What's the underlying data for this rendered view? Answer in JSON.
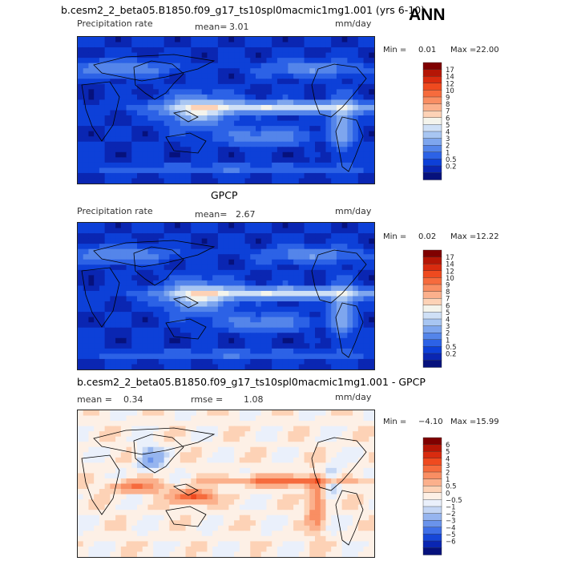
{
  "season": "ANN",
  "panels": [
    {
      "title": "b.cesm2_2_beta05.B1850.f09_g17_ts10spl0macmic1mg1.001 (yrs 6-10)",
      "left_label": "Precipitation rate",
      "stat1_label": "mean=",
      "stat1_value": "3.01",
      "stat2_label": "",
      "stat2_value": "",
      "units": "mm/day",
      "min_label": "Min =",
      "min_value": "0.01",
      "max_label": "Max =",
      "max_value": "22.00",
      "field": "abs",
      "colorbar": {
        "labels": [
          "17",
          "14",
          "12",
          "10",
          "9",
          "8",
          "7",
          "6",
          "5",
          "4",
          "3",
          "2",
          "1",
          "0.5",
          "0.2"
        ],
        "colors": [
          "#7f0000",
          "#b51606",
          "#d92b0f",
          "#ef4a1f",
          "#f66b3d",
          "#f98e63",
          "#fbb08c",
          "#fdd2b6",
          "#f4f4ec",
          "#cfe0f6",
          "#a8c6f2",
          "#7ea6ee",
          "#5485ea",
          "#2c62e6",
          "#0d40d8",
          "#0a26b2",
          "#06117c"
        ]
      }
    },
    {
      "title": "GPCP",
      "left_label": "Precipitation rate",
      "stat1_label": "mean=",
      "stat1_value": "2.67",
      "stat2_label": "",
      "stat2_value": "",
      "units": "mm/day",
      "min_label": "Min =",
      "min_value": "0.02",
      "max_label": "Max =",
      "max_value": "12.22",
      "field": "abs",
      "colorbar": {
        "labels": [
          "17",
          "14",
          "12",
          "10",
          "9",
          "8",
          "7",
          "6",
          "5",
          "4",
          "3",
          "2",
          "1",
          "0.5",
          "0.2"
        ],
        "colors": [
          "#7f0000",
          "#b51606",
          "#d92b0f",
          "#ef4a1f",
          "#f66b3d",
          "#f98e63",
          "#fbb08c",
          "#fdd2b6",
          "#f4f4ec",
          "#cfe0f6",
          "#a8c6f2",
          "#7ea6ee",
          "#5485ea",
          "#2c62e6",
          "#0d40d8",
          "#0a26b2",
          "#06117c"
        ]
      }
    },
    {
      "title": "b.cesm2_2_beta05.B1850.f09_g17_ts10spl0macmic1mg1.001 - GPCP",
      "left_label": "",
      "stat1_label": "mean =",
      "stat1_value": "0.34",
      "stat2_label": "rmse =",
      "stat2_value": "1.08",
      "units": "mm/day",
      "min_label": "Min =",
      "min_value": "−4.10",
      "max_label": "Max =",
      "max_value": "15.99",
      "field": "diff",
      "colorbar": {
        "labels": [
          "6",
          "5",
          "4",
          "3",
          "2",
          "1",
          "0.5",
          "0",
          "−0.5",
          "−1",
          "−2",
          "−3",
          "−4",
          "−5",
          "−6"
        ],
        "colors": [
          "#7f0000",
          "#b51606",
          "#d92b0f",
          "#ef4a1f",
          "#f66b3d",
          "#f98e63",
          "#fbb08c",
          "#fdd2b6",
          "#fdf0e6",
          "#eaf0fb",
          "#c4d6f4",
          "#96b5ef",
          "#6a93eb",
          "#3f6fe7",
          "#1646d8",
          "#0a26b2",
          "#06117c"
        ]
      }
    }
  ]
}
